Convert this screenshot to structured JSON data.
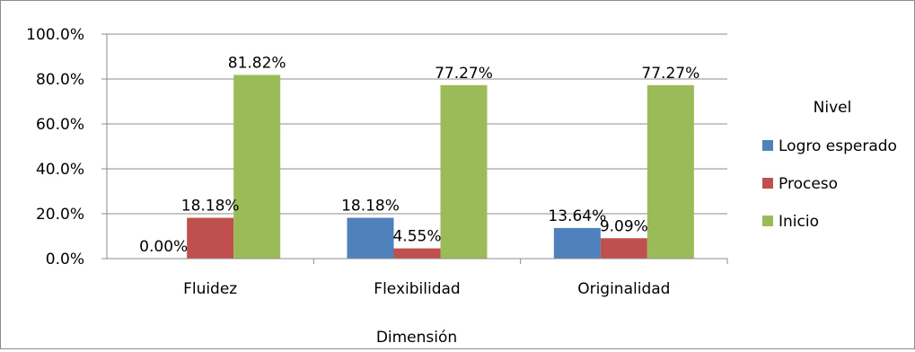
{
  "chart_data": {
    "type": "bar",
    "categories": [
      "Fluidez",
      "Flexibilidad",
      "Originalidad"
    ],
    "series": [
      {
        "name": "Logro esperado",
        "values": [
          0.0,
          18.18,
          13.64
        ],
        "color": "#4f81bd"
      },
      {
        "name": "Proceso",
        "values": [
          18.18,
          4.55,
          9.09
        ],
        "color": "#c0504d"
      },
      {
        "name": "Inicio",
        "values": [
          81.82,
          77.27,
          77.27
        ],
        "color": "#9bbb59"
      }
    ],
    "data_labels": [
      [
        "0.00%",
        "18.18%",
        "13.64%"
      ],
      [
        "18.18%",
        "4.55%",
        "9.09%"
      ],
      [
        "81.82%",
        "77.27%",
        "77.27%"
      ]
    ],
    "yticks": [
      "0.0%",
      "20.0%",
      "40.0%",
      "60.0%",
      "80.0%",
      "100.0%"
    ],
    "ylim": [
      0,
      100
    ],
    "xlabel": "Dimensión",
    "legend_title": "Nivel",
    "legend_position": "right",
    "grid": true
  }
}
